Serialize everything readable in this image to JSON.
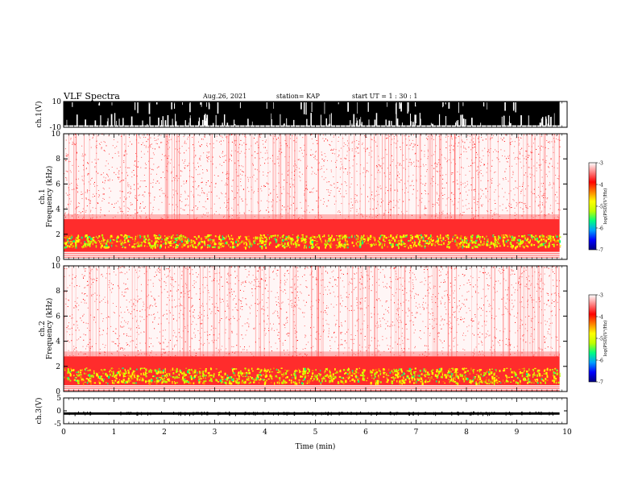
{
  "header": {
    "title": "VLF Spectra",
    "date": "Aug.26, 2021",
    "station": "station= KAP",
    "start_ut": "start  UT =   1 : 30 : 1"
  },
  "chart_data": [
    {
      "type": "line",
      "ylabel": "ch.1(V)",
      "ylim": [
        -10,
        10
      ],
      "y_ticks": [
        "10",
        "-10"
      ],
      "xlim": [
        0,
        10
      ],
      "description_of_series": "dense broadband waveform filling most of the range",
      "series": [
        {
          "color": "#000000",
          "approx_envelope": [
            -8.5,
            10
          ]
        }
      ]
    },
    {
      "type": "heatmap",
      "ylabel": "ch.1\nFrequency  (kHz)",
      "ylim": [
        0,
        10
      ],
      "y_ticks": [
        "0",
        "2",
        "4",
        "6",
        "8",
        "10"
      ],
      "xlim": [
        0,
        10
      ],
      "colorbar": {
        "label": "log(PSD)(V²/Hz)",
        "range": [
          -7,
          -3
        ],
        "ticks": [
          "-3",
          "-4",
          "-5",
          "-6",
          "-7"
        ],
        "colors": [
          "#000080",
          "#0000ff",
          "#00a0ff",
          "#00ff80",
          "#c0ff00",
          "#ffff00",
          "#ff8000",
          "#ff0000",
          "#ff8080",
          "#ffffff"
        ]
      },
      "bands": [
        {
          "from_khz": 0.6,
          "to_khz": 3.2,
          "level": -4.0,
          "note": "strong red band"
        },
        {
          "from_khz": 1.0,
          "to_khz": 2.0,
          "level": -4.6,
          "note": "yellow-green enhancement"
        },
        {
          "from_khz": 3.2,
          "to_khz": 10,
          "level": -3.5,
          "note": "sparse red speckle"
        }
      ],
      "data_gap_end_min": 9.85
    },
    {
      "type": "heatmap",
      "ylabel": "ch.2\nFrequency  (kHz)",
      "ylim": [
        0,
        10
      ],
      "y_ticks": [
        "0",
        "2",
        "4",
        "6",
        "8",
        "10"
      ],
      "xlim": [
        0,
        10
      ],
      "colorbar": {
        "label": "log(PSD)(V²/Hz)",
        "range": [
          -7,
          -3
        ],
        "ticks": [
          "-3",
          "-4",
          "-5",
          "-6",
          "-7"
        ],
        "colors": [
          "#000080",
          "#0000ff",
          "#00a0ff",
          "#00ff80",
          "#c0ff00",
          "#ffff00",
          "#ff8000",
          "#ff0000",
          "#ff8080",
          "#ffffff"
        ]
      },
      "bands": [
        {
          "from_khz": 0.5,
          "to_khz": 2.8,
          "level": -4.0,
          "note": "strong red band"
        },
        {
          "from_khz": 0.7,
          "to_khz": 1.9,
          "level": -4.8,
          "note": "yellow-green enhancement"
        },
        {
          "from_khz": 2.8,
          "to_khz": 10,
          "level": -3.5,
          "note": "sparse red speckle"
        }
      ],
      "data_gap_end_min": 9.85
    },
    {
      "type": "line",
      "ylabel": "ch.3(V)",
      "ylim": [
        -5,
        5
      ],
      "y_ticks": [
        "5",
        "0",
        "-5"
      ],
      "xlim": [
        0,
        10
      ],
      "x_ticks": [
        "0",
        "1",
        "2",
        "3",
        "4",
        "5",
        "6",
        "7",
        "8",
        "9",
        "10"
      ],
      "xlabel": "Time  (min)",
      "series": [
        {
          "color": "#000000",
          "approx_value": -1.0,
          "approx_envelope": [
            -1.5,
            -0.6
          ]
        }
      ]
    }
  ]
}
